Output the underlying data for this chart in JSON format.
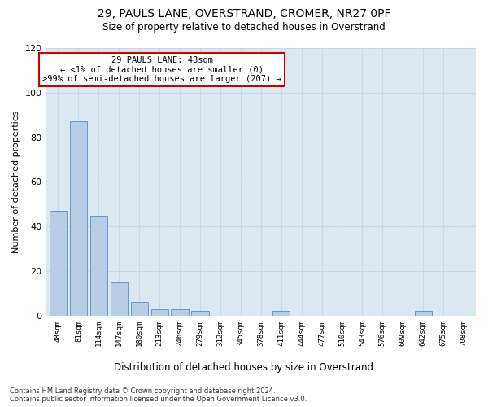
{
  "title1": "29, PAULS LANE, OVERSTRAND, CROMER, NR27 0PF",
  "title2": "Size of property relative to detached houses in Overstrand",
  "xlabel": "Distribution of detached houses by size in Overstrand",
  "ylabel": "Number of detached properties",
  "bar_labels": [
    "48sqm",
    "81sqm",
    "114sqm",
    "147sqm",
    "180sqm",
    "213sqm",
    "246sqm",
    "279sqm",
    "312sqm",
    "345sqm",
    "378sqm",
    "411sqm",
    "444sqm",
    "477sqm",
    "510sqm",
    "543sqm",
    "576sqm",
    "609sqm",
    "642sqm",
    "675sqm",
    "708sqm"
  ],
  "bar_values": [
    47,
    87,
    45,
    15,
    6,
    3,
    3,
    2,
    0,
    0,
    0,
    2,
    0,
    0,
    0,
    0,
    0,
    0,
    2,
    0,
    0
  ],
  "bar_color": "#b8cce4",
  "bar_edge_color": "#6699cc",
  "annotation_text": "29 PAULS LANE: 48sqm\n← <1% of detached houses are smaller (0)\n>99% of semi-detached houses are larger (207) →",
  "annotation_box_color": "#ffffff",
  "annotation_border_color": "#cc0000",
  "ylim": [
    0,
    120
  ],
  "yticks": [
    0,
    20,
    40,
    60,
    80,
    100,
    120
  ],
  "grid_color": "#c8d8e8",
  "plot_bg_color": "#dce8f0",
  "fig_bg_color": "#ffffff",
  "footer1": "Contains HM Land Registry data © Crown copyright and database right 2024.",
  "footer2": "Contains public sector information licensed under the Open Government Licence v3.0."
}
